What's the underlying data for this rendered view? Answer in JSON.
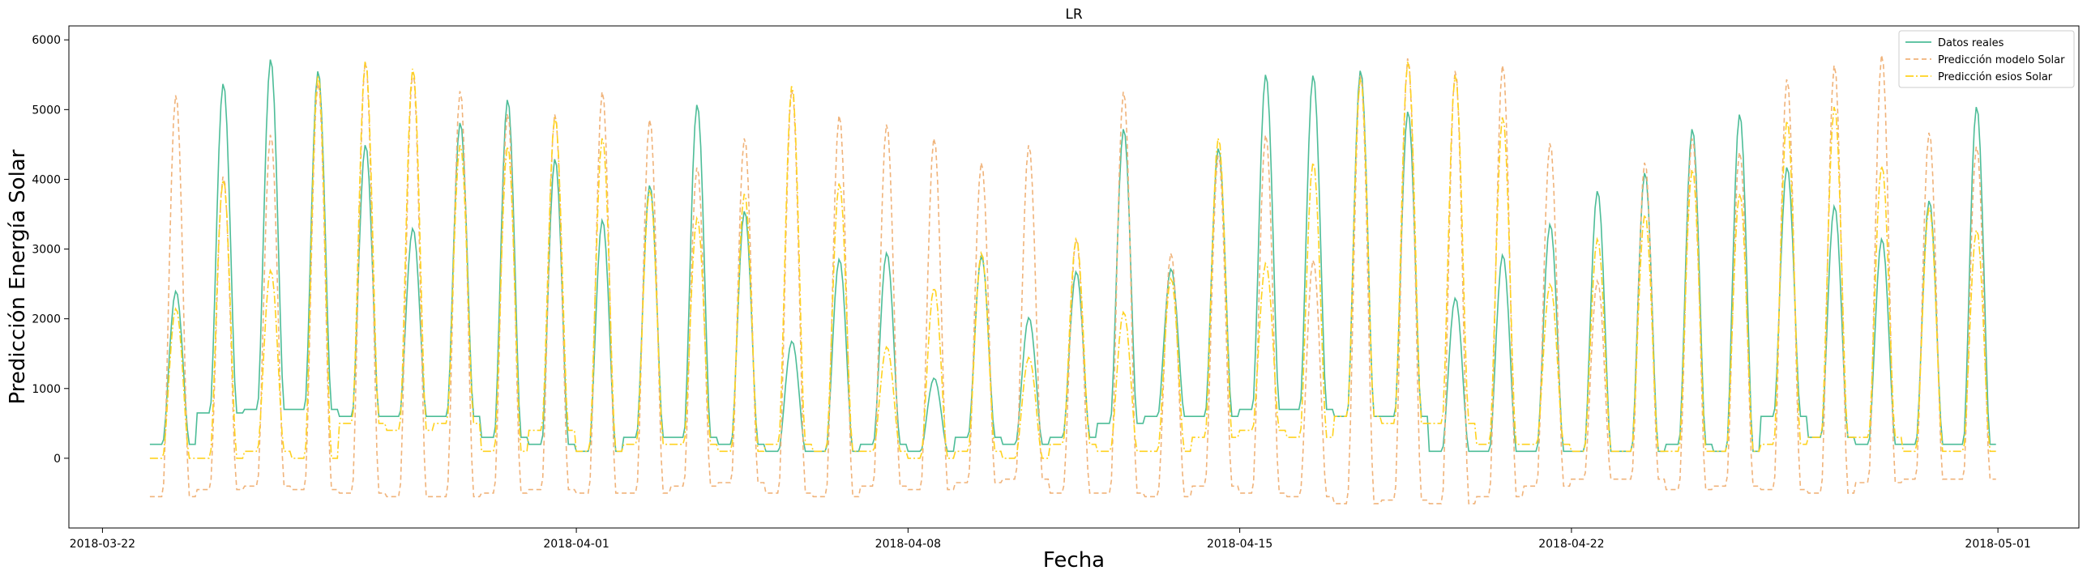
{
  "chart_data": {
    "type": "line",
    "title": "LR",
    "xlabel": "Fecha",
    "ylabel": "Predicción Energía Solar",
    "xlim": [
      "2018-03-21T07:00",
      "2018-05-02T17:00"
    ],
    "ylim": [
      -1000,
      6200
    ],
    "x_ticks": [
      "2018-03-22",
      "2018-04-01",
      "2018-04-08",
      "2018-04-15",
      "2018-04-22",
      "2018-05-01"
    ],
    "y_ticks": [
      0,
      1000,
      2000,
      3000,
      4000,
      5000,
      6000
    ],
    "x_range": {
      "start": "2018-03-23T00:00",
      "end": "2018-04-30T23:00",
      "step": "1h"
    },
    "grid": false,
    "legend_position": "upper right",
    "series": [
      {
        "name": "Datos reales",
        "color": "#4dbd98",
        "dash": "solid",
        "daily_peak": [
          2400,
          5380,
          5730,
          5560,
          4500,
          3300,
          4820,
          5150,
          4300,
          3420,
          3920,
          5080,
          3550,
          1680,
          2860,
          2950,
          1150,
          2900,
          2020,
          2680,
          4730,
          2720,
          4450,
          5510,
          5500,
          5570,
          4980,
          2300,
          2920,
          3360,
          3840,
          4100,
          4730,
          4940,
          4180,
          3620,
          3150,
          3700,
          5050
        ],
        "daily_night": [
          200,
          650,
          700,
          700,
          600,
          600,
          600,
          300,
          200,
          100,
          300,
          300,
          200,
          100,
          100,
          200,
          100,
          300,
          200,
          300,
          500,
          600,
          600,
          700,
          700,
          600,
          600,
          100,
          100,
          100,
          100,
          100,
          200,
          100,
          600,
          300,
          200,
          200,
          200
        ]
      },
      {
        "name": "Predicción modelo Solar",
        "color": "#f0b37a",
        "dash": "6,4",
        "daily_peak": [
          5220,
          4050,
          4650,
          5400,
          5700,
          5550,
          5280,
          4950,
          4950,
          5270,
          4870,
          4180,
          4600,
          5300,
          4930,
          4800,
          4600,
          4250,
          4500,
          3150,
          5270,
          2950,
          4350,
          4650,
          2850,
          5500,
          5750,
          5570,
          5650,
          4530,
          2550,
          4250,
          4600,
          4400,
          5450,
          5650,
          5800,
          4680,
          4480
        ],
        "daily_night": [
          -550,
          -450,
          -400,
          -450,
          -500,
          -550,
          -550,
          -500,
          -450,
          -500,
          -500,
          -400,
          -350,
          -500,
          -550,
          -400,
          -450,
          -350,
          -300,
          -500,
          -500,
          -550,
          -400,
          -500,
          -550,
          -650,
          -600,
          -650,
          -550,
          -400,
          -300,
          -300,
          -450,
          -400,
          -450,
          -500,
          -350,
          -300,
          -300
        ]
      },
      {
        "name": "Predicción esios Solar",
        "color": "#ffd21f",
        "dash": "10,3,2,3",
        "daily_peak": [
          2150,
          4000,
          2700,
          5500,
          5700,
          5600,
          4500,
          4480,
          4900,
          4600,
          3850,
          3450,
          3800,
          5350,
          3950,
          1600,
          2450,
          2950,
          1450,
          3150,
          2100,
          2580,
          4600,
          2800,
          4250,
          5450,
          5700,
          5500,
          4900,
          2500,
          3150,
          3500,
          4150,
          3800,
          4850,
          5050,
          4200,
          3600,
          3280
        ],
        "daily_night": [
          0,
          0,
          100,
          0,
          500,
          400,
          500,
          100,
          400,
          100,
          200,
          200,
          100,
          200,
          100,
          100,
          0,
          100,
          0,
          200,
          100,
          100,
          300,
          400,
          300,
          600,
          500,
          500,
          200,
          200,
          100,
          100,
          100,
          100,
          200,
          300,
          300,
          100,
          100
        ]
      }
    ]
  }
}
